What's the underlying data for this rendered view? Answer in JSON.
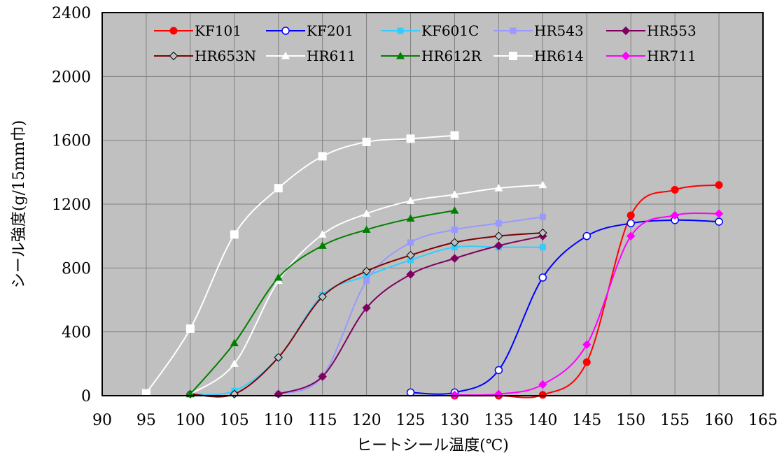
{
  "chart_data": {
    "type": "line",
    "title": "",
    "xlabel": "ヒートシール温度(℃)",
    "ylabel": "シール強度(g/15mm巾)",
    "xlim": [
      90,
      165
    ],
    "ylim": [
      0,
      2400
    ],
    "x_ticks": [
      90,
      95,
      100,
      105,
      110,
      115,
      120,
      125,
      130,
      135,
      140,
      145,
      150,
      155,
      160,
      165
    ],
    "y_ticks": [
      0,
      400,
      800,
      1200,
      1600,
      2000,
      2400
    ],
    "grid": true,
    "plot_background": "#c0c0c0",
    "legend_position": "top",
    "series": [
      {
        "name": "KF101",
        "color": "#ff0000",
        "marker": "circle-filled",
        "x": [
          130,
          135,
          140,
          145,
          150,
          155,
          160
        ],
        "y": [
          0,
          0,
          5,
          210,
          1130,
          1290,
          1320
        ]
      },
      {
        "name": "KF201",
        "color": "#0000ff",
        "marker": "circle-open",
        "x": [
          125,
          130,
          135,
          140,
          145,
          150,
          155,
          160
        ],
        "y": [
          20,
          20,
          160,
          740,
          1000,
          1080,
          1100,
          1090
        ]
      },
      {
        "name": "KF601C",
        "color": "#33ccff",
        "marker": "square-filled",
        "x": [
          100,
          105,
          110,
          115,
          120,
          125,
          130,
          135,
          140
        ],
        "y": [
          10,
          30,
          240,
          630,
          750,
          850,
          930,
          930,
          930
        ]
      },
      {
        "name": "HR543",
        "color": "#9999ff",
        "marker": "square-filled",
        "x": [
          110,
          115,
          120,
          125,
          130,
          135,
          140
        ],
        "y": [
          10,
          120,
          720,
          960,
          1040,
          1080,
          1120
        ]
      },
      {
        "name": "HR553",
        "color": "#800060",
        "marker": "diamond-filled",
        "x": [
          110,
          115,
          120,
          125,
          130,
          135,
          140
        ],
        "y": [
          10,
          120,
          550,
          760,
          860,
          940,
          1000
        ]
      },
      {
        "name": "HR653N",
        "color": "#800000",
        "marker": "diamond-open",
        "x": [
          100,
          105,
          110,
          115,
          120,
          125,
          130,
          135,
          140
        ],
        "y": [
          10,
          10,
          240,
          620,
          780,
          880,
          960,
          1000,
          1020
        ]
      },
      {
        "name": "HR611",
        "color": "#ffffff",
        "marker": "triangle-filled",
        "x": [
          100,
          105,
          110,
          115,
          120,
          125,
          130,
          135,
          140
        ],
        "y": [
          10,
          200,
          720,
          1010,
          1140,
          1220,
          1260,
          1300,
          1320
        ]
      },
      {
        "name": "HR612R",
        "color": "#008000",
        "marker": "triangle-filled",
        "x": [
          100,
          105,
          110,
          115,
          120,
          125,
          130
        ],
        "y": [
          10,
          330,
          740,
          940,
          1040,
          1110,
          1160
        ]
      },
      {
        "name": "HR614",
        "color": "#ffffff",
        "marker": "square-filled",
        "x": [
          95,
          100,
          105,
          110,
          115,
          120,
          125,
          130
        ],
        "y": [
          15,
          420,
          1010,
          1300,
          1500,
          1590,
          1610,
          1630
        ]
      },
      {
        "name": "HR711",
        "color": "#ff00ff",
        "marker": "diamond-filled",
        "x": [
          130,
          135,
          140,
          145,
          150,
          155,
          160
        ],
        "y": [
          5,
          10,
          70,
          320,
          1000,
          1130,
          1140
        ]
      }
    ]
  }
}
